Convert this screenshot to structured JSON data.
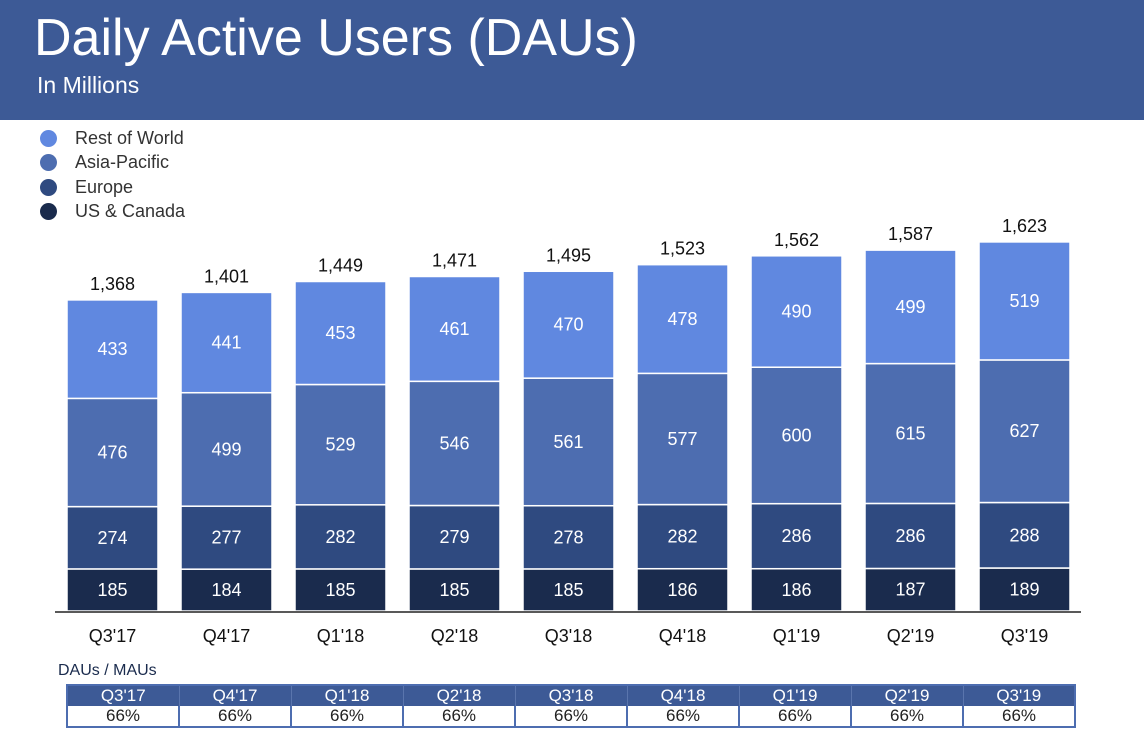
{
  "chart_data": {
    "type": "bar",
    "stacked": true,
    "title": "Daily Active Users (DAUs)",
    "subtitle": "In Millions",
    "categories": [
      "Q3'17",
      "Q4'17",
      "Q1'18",
      "Q2'18",
      "Q3'18",
      "Q4'18",
      "Q1'19",
      "Q2'19",
      "Q3'19"
    ],
    "series": [
      {
        "name": "US & Canada",
        "color": "#1a2b4d",
        "values": [
          185,
          184,
          185,
          185,
          185,
          186,
          186,
          187,
          189
        ]
      },
      {
        "name": "Europe",
        "color": "#2f4a80",
        "values": [
          274,
          277,
          282,
          279,
          278,
          282,
          286,
          286,
          288
        ]
      },
      {
        "name": "Asia-Pacific",
        "color": "#4d6db0",
        "values": [
          476,
          499,
          529,
          546,
          561,
          577,
          600,
          615,
          627
        ]
      },
      {
        "name": "Rest of World",
        "color": "#6088e0",
        "values": [
          433,
          441,
          453,
          461,
          470,
          478,
          490,
          499,
          519
        ]
      }
    ],
    "totals": [
      "1,368",
      "1,401",
      "1,449",
      "1,471",
      "1,495",
      "1,523",
      "1,562",
      "1,587",
      "1,623"
    ],
    "legend_order": [
      "Rest of World",
      "Asia-Pacific",
      "Europe",
      "US & Canada"
    ],
    "legend_position": "top-left",
    "grid": false
  },
  "ratio": {
    "title": "DAUs / MAUs",
    "quarters": [
      "Q3'17",
      "Q4'17",
      "Q1'18",
      "Q2'18",
      "Q3'18",
      "Q4'18",
      "Q1'19",
      "Q2'19",
      "Q3'19"
    ],
    "values": [
      "66%",
      "66%",
      "66%",
      "66%",
      "66%",
      "66%",
      "66%",
      "66%",
      "66%"
    ]
  },
  "colors": {
    "header": "#3d5a96"
  }
}
